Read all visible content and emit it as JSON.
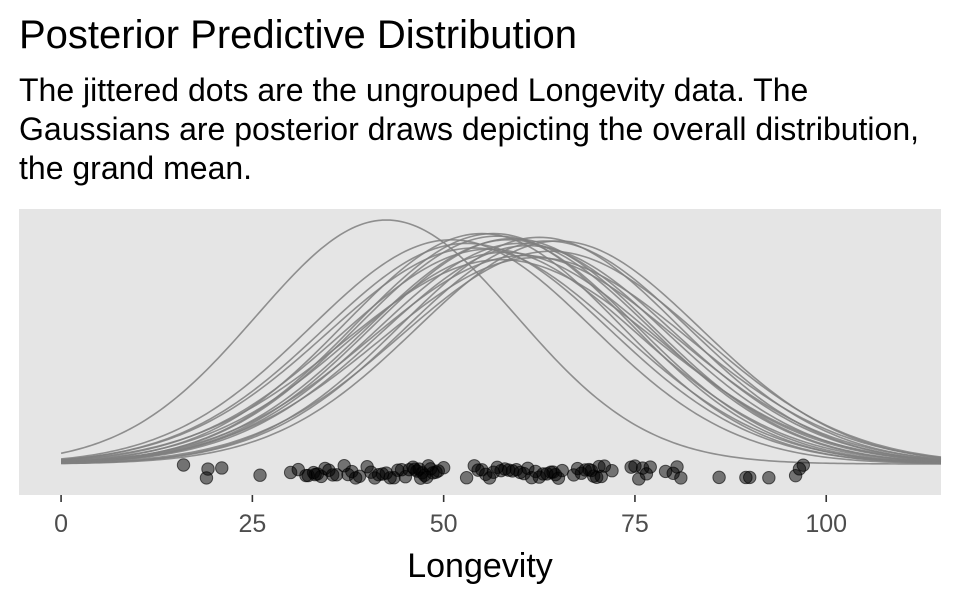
{
  "chart_data": {
    "type": "line",
    "title": "Posterior Predictive Distribution",
    "subtitle": "The jittered dots are the ungrouped Longevity data. The Gaussians are posterior draws depicting the overall distribution, the grand mean.",
    "xlabel": "Longevity",
    "ylabel": "",
    "xlim": [
      -5.5,
      115
    ],
    "x_ticks": [
      0,
      25,
      50,
      75,
      100
    ],
    "grid": false,
    "panel_background": "#e5e5e5",
    "curve_color": "#7f7f7f",
    "point_color": "#000000",
    "point_opacity": 0.5,
    "series": [
      {
        "type": "density-curves",
        "x_range": [
          0,
          115
        ],
        "values": [
          {
            "mean": 42.5,
            "sd": 17.0
          },
          {
            "mean": 51.0,
            "sd": 18.5
          },
          {
            "mean": 56.5,
            "sd": 18.0
          },
          {
            "mean": 58.5,
            "sd": 18.5
          },
          {
            "mean": 62.5,
            "sd": 18.3
          },
          {
            "mean": 63.5,
            "sd": 18.6
          },
          {
            "mean": 65.0,
            "sd": 18.6
          },
          {
            "mean": 55.0,
            "sd": 18.0
          },
          {
            "mean": 57.0,
            "sd": 18.2
          },
          {
            "mean": 59.0,
            "sd": 18.4
          },
          {
            "mean": 60.0,
            "sd": 18.8
          },
          {
            "mean": 61.0,
            "sd": 19.0
          },
          {
            "mean": 56.0,
            "sd": 19.3
          },
          {
            "mean": 54.0,
            "sd": 19.2
          },
          {
            "mean": 58.0,
            "sd": 19.6
          },
          {
            "mean": 60.5,
            "sd": 19.9
          },
          {
            "mean": 62.0,
            "sd": 20.1
          },
          {
            "mean": 53.0,
            "sd": 18.8
          },
          {
            "mean": 64.0,
            "sd": 19.5
          },
          {
            "mean": 57.5,
            "sd": 20.3
          }
        ]
      },
      {
        "type": "jittered-points",
        "name": "Longevity",
        "values": [
          16,
          19,
          19.2,
          21,
          26,
          30,
          31,
          32,
          32.3,
          33,
          33.2,
          33.5,
          34,
          34.5,
          35,
          35.5,
          36,
          37,
          37.5,
          38,
          38.5,
          39,
          40,
          40.5,
          41,
          41.5,
          42,
          42.5,
          43,
          43.5,
          44,
          44.5,
          45,
          45.5,
          46,
          46.2,
          46.5,
          46.8,
          47,
          47.2,
          47.5,
          47.8,
          48,
          48.3,
          48.6,
          49,
          49.3,
          50,
          53,
          54,
          54.5,
          55,
          55.5,
          56,
          56.5,
          57,
          57.5,
          58,
          58.5,
          59,
          59.5,
          60,
          60.5,
          61,
          61.5,
          62,
          62.5,
          63,
          63.5,
          64,
          64.3,
          64.6,
          65,
          65.5,
          67,
          67.5,
          68,
          68.5,
          69,
          69.3,
          69.6,
          70,
          70.3,
          70.6,
          71,
          72,
          74.5,
          75,
          75.5,
          76,
          76.5,
          77,
          79,
          80,
          80.5,
          81,
          86,
          89.5,
          90,
          92.5,
          96,
          96.5,
          97
        ]
      }
    ]
  }
}
